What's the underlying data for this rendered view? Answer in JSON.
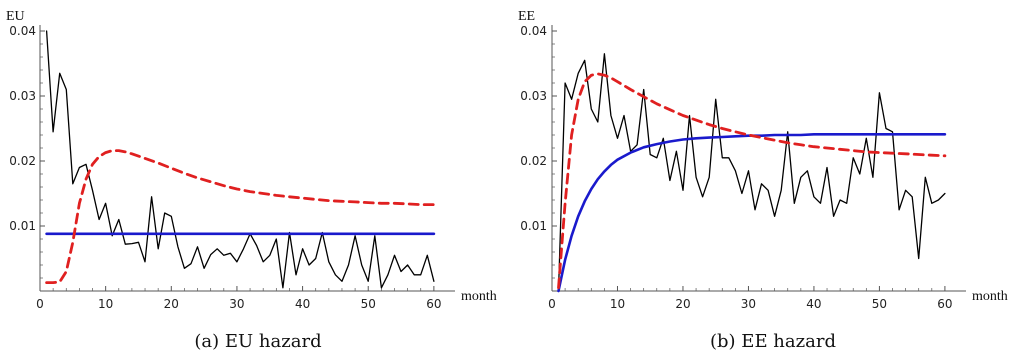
{
  "colors": {
    "data": "#000000",
    "fit_line": "#1a1acc",
    "model": "#e02020",
    "axis": "#555555"
  },
  "chart_data": [
    {
      "type": "line",
      "ylabel": "EU",
      "xlabel": "month",
      "caption": "(a)  EU hazard",
      "xlim": [
        0,
        62
      ],
      "ylim": [
        0,
        0.04
      ],
      "xticks": [
        0,
        10,
        20,
        30,
        40,
        50,
        60
      ],
      "yticks": [
        0.01,
        0.02,
        0.03,
        0.04
      ],
      "ytick_labels": [
        "0.01",
        "0.02",
        "0.03",
        "0.04"
      ],
      "grid": false,
      "series": [
        {
          "style": "solid-black-thin",
          "x": [
            1,
            2,
            3,
            4,
            5,
            6,
            7,
            8,
            9,
            10,
            11,
            12,
            13,
            14,
            15,
            16,
            17,
            18,
            19,
            20,
            21,
            22,
            23,
            24,
            25,
            26,
            27,
            28,
            29,
            30,
            31,
            32,
            33,
            34,
            35,
            36,
            37,
            38,
            39,
            40,
            41,
            42,
            43,
            44,
            45,
            46,
            47,
            48,
            49,
            50,
            51,
            52,
            53,
            54,
            55,
            56,
            57,
            58,
            59,
            60
          ],
          "y": [
            0.04,
            0.0245,
            0.0335,
            0.031,
            0.0165,
            0.019,
            0.0195,
            0.0155,
            0.011,
            0.0135,
            0.0085,
            0.011,
            0.0072,
            0.0073,
            0.0075,
            0.0045,
            0.0145,
            0.0065,
            0.012,
            0.0115,
            0.0068,
            0.0035,
            0.0042,
            0.0068,
            0.0035,
            0.0056,
            0.0065,
            0.0055,
            0.0058,
            0.0045,
            0.0065,
            0.0088,
            0.007,
            0.0045,
            0.0055,
            0.008,
            0.0005,
            0.009,
            0.0025,
            0.0065,
            0.004,
            0.005,
            0.009,
            0.0045,
            0.0025,
            0.0015,
            0.004,
            0.0085,
            0.004,
            0.0015,
            0.0085,
            0.0005,
            0.0025,
            0.0055,
            0.003,
            0.004,
            0.0025,
            0.0025,
            0.0055,
            0.0015
          ]
        },
        {
          "style": "solid-blue-thick",
          "x": [
            1,
            60
          ],
          "y": [
            0.0088,
            0.0088
          ]
        },
        {
          "style": "dashed-red-thick",
          "x": [
            1,
            2,
            3,
            4,
            5,
            6,
            7,
            8,
            9,
            10,
            11,
            12,
            13,
            14,
            16,
            18,
            20,
            22,
            24,
            26,
            28,
            30,
            32,
            34,
            36,
            38,
            40,
            42,
            44,
            46,
            48,
            50,
            52,
            54,
            56,
            58,
            60
          ],
          "y": [
            0.0013,
            0.0013,
            0.0014,
            0.003,
            0.0075,
            0.0135,
            0.0172,
            0.0195,
            0.0207,
            0.0213,
            0.0216,
            0.0216,
            0.0214,
            0.0211,
            0.0204,
            0.0197,
            0.0189,
            0.0181,
            0.0174,
            0.0168,
            0.0162,
            0.0157,
            0.0153,
            0.015,
            0.0147,
            0.0145,
            0.0143,
            0.0141,
            0.0139,
            0.0138,
            0.0137,
            0.0136,
            0.0135,
            0.0135,
            0.0134,
            0.0133,
            0.0133
          ]
        }
      ]
    },
    {
      "type": "line",
      "ylabel": "EE",
      "xlabel": "month",
      "caption": "(b)  EE hazard",
      "xlim": [
        0,
        62
      ],
      "ylim": [
        0,
        0.04
      ],
      "xticks": [
        0,
        10,
        20,
        30,
        40,
        50,
        60
      ],
      "yticks": [
        0.01,
        0.02,
        0.03,
        0.04
      ],
      "ytick_labels": [
        "0.01",
        "0.02",
        "0.03",
        "0.04"
      ],
      "grid": false,
      "series": [
        {
          "style": "solid-black-thin",
          "x": [
            1,
            2,
            3,
            4,
            5,
            6,
            7,
            8,
            9,
            10,
            11,
            12,
            13,
            14,
            15,
            16,
            17,
            18,
            19,
            20,
            21,
            22,
            23,
            24,
            25,
            26,
            27,
            28,
            29,
            30,
            31,
            32,
            33,
            34,
            35,
            36,
            37,
            38,
            39,
            40,
            41,
            42,
            43,
            44,
            45,
            46,
            47,
            48,
            49,
            50,
            51,
            52,
            53,
            54,
            55,
            56,
            57,
            58,
            59,
            60
          ],
          "y": [
            0.0,
            0.032,
            0.0295,
            0.0335,
            0.0355,
            0.028,
            0.026,
            0.0365,
            0.027,
            0.0235,
            0.027,
            0.0215,
            0.0225,
            0.031,
            0.021,
            0.0205,
            0.0235,
            0.017,
            0.0215,
            0.0155,
            0.027,
            0.0175,
            0.0145,
            0.0175,
            0.0295,
            0.0205,
            0.0205,
            0.0185,
            0.015,
            0.0185,
            0.0125,
            0.0165,
            0.0155,
            0.0115,
            0.0155,
            0.0245,
            0.0135,
            0.0175,
            0.0185,
            0.0145,
            0.0135,
            0.019,
            0.0115,
            0.014,
            0.0135,
            0.0205,
            0.018,
            0.0235,
            0.0175,
            0.0305,
            0.025,
            0.0245,
            0.0125,
            0.0155,
            0.0145,
            0.005,
            0.0175,
            0.0135,
            0.014,
            0.015
          ]
        },
        {
          "style": "solid-blue-thick",
          "x": [
            1,
            2,
            3,
            4,
            5,
            6,
            7,
            8,
            9,
            10,
            12,
            14,
            16,
            18,
            20,
            22,
            24,
            26,
            28,
            30,
            32,
            34,
            36,
            38,
            40,
            45,
            50,
            55,
            60
          ],
          "y": [
            0.0,
            0.0048,
            0.0085,
            0.0115,
            0.0138,
            0.0157,
            0.0172,
            0.0184,
            0.0194,
            0.0202,
            0.0213,
            0.0221,
            0.0226,
            0.023,
            0.0233,
            0.0235,
            0.0236,
            0.0237,
            0.0238,
            0.0239,
            0.0239,
            0.024,
            0.024,
            0.024,
            0.0241,
            0.0241,
            0.0241,
            0.0241,
            0.0241
          ]
        },
        {
          "style": "dashed-red-thick",
          "x": [
            1,
            2,
            3,
            4,
            5,
            6,
            7,
            8,
            9,
            10,
            12,
            14,
            16,
            18,
            20,
            22,
            24,
            26,
            28,
            30,
            32,
            34,
            36,
            38,
            40,
            42,
            44,
            46,
            48,
            50,
            52,
            54,
            56,
            58,
            60
          ],
          "y": [
            0.0005,
            0.0135,
            0.024,
            0.0295,
            0.0322,
            0.0332,
            0.0334,
            0.0332,
            0.0328,
            0.0322,
            0.031,
            0.0299,
            0.0288,
            0.0279,
            0.027,
            0.0263,
            0.0256,
            0.025,
            0.0245,
            0.024,
            0.0236,
            0.0232,
            0.0228,
            0.0225,
            0.0222,
            0.022,
            0.0218,
            0.0216,
            0.0214,
            0.0213,
            0.0212,
            0.0211,
            0.021,
            0.0209,
            0.0208
          ]
        }
      ]
    }
  ]
}
